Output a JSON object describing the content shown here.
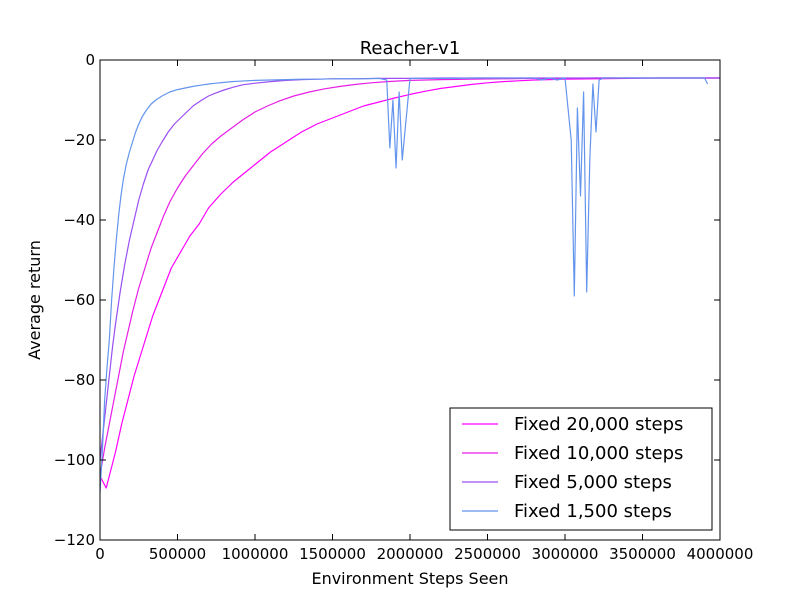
{
  "chart_data": {
    "type": "line",
    "title": "Reacher-v1",
    "xlabel": "Environment Steps Seen",
    "ylabel": "Average return",
    "xlim": [
      0,
      4000000
    ],
    "ylim": [
      -120,
      0
    ],
    "xticks": [
      0,
      500000,
      1000000,
      1500000,
      2000000,
      2500000,
      3000000,
      3500000,
      4000000
    ],
    "xtick_labels": [
      "0",
      "500000",
      "1000000",
      "1500000",
      "2000000",
      "2500000",
      "3000000",
      "3500000",
      "4000000"
    ],
    "yticks": [
      0,
      -20,
      -40,
      -60,
      -80,
      -100,
      -120
    ],
    "ytick_labels": [
      "0",
      "−20",
      "−40",
      "−60",
      "−80",
      "−100",
      "−120"
    ],
    "grid": false,
    "legend_position": "bottom-right",
    "series": [
      {
        "name": "Fixed 20,000 steps",
        "color": "#ff00ff",
        "x": [
          0,
          40000,
          60000,
          100000,
          140000,
          180000,
          220000,
          260000,
          300000,
          340000,
          380000,
          420000,
          460000,
          520000,
          580000,
          640000,
          700000,
          780000,
          860000,
          940000,
          1020000,
          1100000,
          1200000,
          1300000,
          1400000,
          1500000,
          1600000,
          1700000,
          1800000,
          1900000,
          2000000,
          2100000,
          2200000,
          2300000,
          2400000,
          2500000,
          2600000,
          2700000,
          2800000,
          2900000,
          3000000,
          3200000,
          3400000,
          3600000,
          3800000,
          4000000
        ],
        "y": [
          -104,
          -107,
          -104,
          -98,
          -91,
          -85,
          -79,
          -74,
          -69,
          -64,
          -60,
          -56,
          -52,
          -48,
          -44,
          -41,
          -37,
          -33.5,
          -30.5,
          -28,
          -25.5,
          -23,
          -20.5,
          -18,
          -16,
          -14.5,
          -13,
          -11.5,
          -10.5,
          -9.5,
          -8.6,
          -7.8,
          -7.1,
          -6.6,
          -6.1,
          -5.7,
          -5.4,
          -5.2,
          -5.0,
          -4.9,
          -4.8,
          -4.7,
          -4.6,
          -4.5,
          -4.5,
          -4.5
        ]
      },
      {
        "name": "Fixed 10,000 steps",
        "color": "#e61ee6",
        "x": [
          0,
          30000,
          60000,
          90000,
          120000,
          150000,
          180000,
          210000,
          250000,
          290000,
          330000,
          370000,
          410000,
          450000,
          500000,
          550000,
          600000,
          660000,
          720000,
          780000,
          850000,
          920000,
          1000000,
          1080000,
          1160000,
          1250000,
          1350000,
          1450000,
          1550000,
          1650000,
          1750000,
          1850000,
          2000000,
          2200000,
          2400000,
          2600000,
          2800000,
          3000000,
          3200000,
          3400000,
          3600000,
          3800000,
          4000000
        ],
        "y": [
          -104,
          -97,
          -91,
          -85,
          -79,
          -73,
          -68,
          -63,
          -57,
          -52,
          -47,
          -43,
          -39,
          -35.5,
          -32,
          -29,
          -26.5,
          -23.5,
          -21,
          -19,
          -17,
          -15,
          -13,
          -11.5,
          -10.2,
          -9,
          -8,
          -7.2,
          -6.6,
          -6.1,
          -5.7,
          -5.4,
          -5.1,
          -4.9,
          -4.8,
          -4.7,
          -4.6,
          -4.6,
          -4.5,
          -4.5,
          -4.5,
          -4.5,
          -4.5
        ]
      },
      {
        "name": "Fixed 5,000 steps",
        "color": "#9a4ff2",
        "x": [
          0,
          20000,
          40000,
          60000,
          80000,
          100000,
          130000,
          160000,
          190000,
          220000,
          250000,
          280000,
          310000,
          340000,
          370000,
          400000,
          440000,
          480000,
          520000,
          560000,
          600000,
          650000,
          700000,
          750000,
          800000,
          860000,
          920000,
          1000000,
          1100000,
          1200000,
          1300000,
          1400000,
          1500000,
          1600000,
          1800000,
          2000000,
          2200000,
          2500000,
          2800000,
          3100000,
          3400000,
          3700000,
          4000000
        ],
        "y": [
          -100,
          -93,
          -86,
          -79,
          -72,
          -66,
          -58,
          -51,
          -45,
          -40,
          -35,
          -31,
          -27.5,
          -25,
          -22.5,
          -20.5,
          -18,
          -16,
          -14.5,
          -13,
          -11.5,
          -10.2,
          -9,
          -8.2,
          -7.5,
          -6.8,
          -6.2,
          -5.8,
          -5.4,
          -5.1,
          -4.9,
          -4.8,
          -4.7,
          -4.7,
          -4.6,
          -4.6,
          -4.5,
          -4.5,
          -4.5,
          -4.5,
          -4.5,
          -4.5,
          -4.5
        ]
      },
      {
        "name": "Fixed 1,500 steps",
        "color": "#6495ed",
        "x": [
          0,
          15000,
          30000,
          45000,
          60000,
          75000,
          90000,
          105000,
          120000,
          135000,
          150000,
          170000,
          190000,
          210000,
          230000,
          250000,
          275000,
          300000,
          330000,
          360000,
          400000,
          450000,
          500000,
          550000,
          600000,
          650000,
          700000,
          750000,
          800000,
          850000,
          900000,
          1000000,
          1100000,
          1200000,
          1300000,
          1400000,
          1500000,
          1600000,
          1700000,
          1800000,
          1850000,
          1870000,
          1890000,
          1910000,
          1930000,
          1950000,
          2000000,
          2100000,
          2200000,
          2300000,
          2400000,
          2500000,
          2600000,
          2700000,
          2800000,
          2850000,
          2900000,
          2950000,
          3000000,
          3040000,
          3060000,
          3080000,
          3100000,
          3120000,
          3140000,
          3160000,
          3180000,
          3200000,
          3220000,
          3250000,
          3300000,
          3350000,
          3400000,
          3450000,
          3500000,
          3550000,
          3600000,
          3650000,
          3700000,
          3750000,
          3800000,
          3850000,
          3900000,
          3920000
        ],
        "y": [
          -108,
          -98,
          -85,
          -77,
          -70,
          -60,
          -52,
          -45,
          -39,
          -34,
          -30,
          -26,
          -23,
          -20.5,
          -18,
          -16,
          -14,
          -12.5,
          -11,
          -10,
          -9,
          -8,
          -7.4,
          -7,
          -6.6,
          -6.3,
          -6,
          -5.8,
          -5.6,
          -5.4,
          -5.3,
          -5.1,
          -5,
          -4.9,
          -4.8,
          -4.8,
          -4.7,
          -4.7,
          -4.7,
          -4.6,
          -5,
          -22,
          -10,
          -27,
          -8,
          -25,
          -4.6,
          -4.6,
          -4.6,
          -4.6,
          -4.5,
          -4.5,
          -4.5,
          -4.5,
          -4.5,
          -5,
          -4.5,
          -5,
          -4.5,
          -20,
          -59,
          -12,
          -34,
          -8,
          -58,
          -25,
          -6,
          -18,
          -5,
          -4.5,
          -4.5,
          -4.5,
          -4.5,
          -4.5,
          -4.5,
          -4.5,
          -4.5,
          -4.5,
          -4.5,
          -4.5,
          -4.5,
          -4.5,
          -4.5,
          -6
        ]
      }
    ]
  }
}
